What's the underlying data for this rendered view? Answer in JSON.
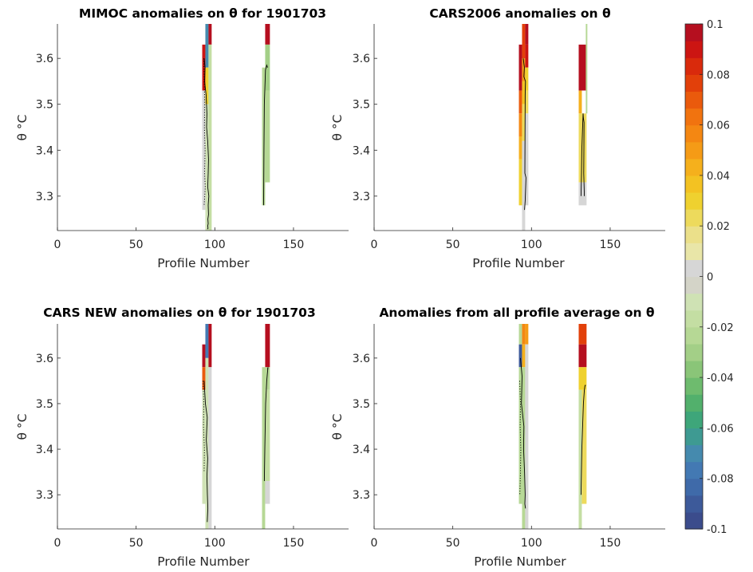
{
  "chart_data": {
    "type": "heatmap",
    "colorbar": {
      "min": -0.1,
      "max": 0.1,
      "ticks": [
        "0.1",
        "0.08",
        "0.06",
        "0.04",
        "0.02",
        "0",
        "-0.02",
        "-0.04",
        "-0.06",
        "-0.08",
        "-0.1"
      ],
      "colors": [
        "#3b4c8c",
        "#3d5a9a",
        "#3f6aa9",
        "#4379b3",
        "#458aae",
        "#3e9a92",
        "#3ea67a",
        "#52b06c",
        "#6ebb6e",
        "#8ac578",
        "#a3cf87",
        "#b6d895",
        "#c4dea3",
        "#cfe2b4",
        "#d4d4c8",
        "#d6d6d6",
        "#e9e6a8",
        "#ebe08a",
        "#edda5c",
        "#efd12f",
        "#f3c222",
        "#f5b01c",
        "#f59b16",
        "#f48712",
        "#f1730f",
        "#ea5a0c",
        "#e2400a",
        "#d92a0c",
        "#cc1512",
        "#b50f1f"
      ]
    },
    "panels": [
      {
        "title": "MIMOC anomalies on θ  for 1901703",
        "xlabel": "Profile Number",
        "ylabel": "θ °C",
        "xlim": [
          0,
          185
        ],
        "ylim": [
          3.225,
          3.675
        ],
        "xticks": [
          0,
          50,
          100,
          150
        ],
        "yticks": [
          3.3,
          3.4,
          3.5,
          3.6
        ],
        "cells": [
          {
            "x0": 92,
            "x1": 94,
            "y0": 3.53,
            "y1": 3.63,
            "v": 0.09
          },
          {
            "x0": 92,
            "x1": 94,
            "y0": 3.27,
            "y1": 3.53,
            "v": 0.0
          },
          {
            "x0": 94,
            "x1": 96,
            "y0": 3.58,
            "y1": 3.675,
            "v": -0.07
          },
          {
            "x0": 94,
            "x1": 96,
            "y0": 3.5,
            "y1": 3.58,
            "v": 0.03
          },
          {
            "x0": 94,
            "x1": 96,
            "y0": 3.225,
            "y1": 3.5,
            "v": -0.01
          },
          {
            "x0": 96,
            "x1": 98,
            "y0": 3.63,
            "y1": 3.675,
            "v": 0.1
          },
          {
            "x0": 96,
            "x1": 98,
            "y0": 3.225,
            "y1": 3.63,
            "v": -0.015
          },
          {
            "x0": 130,
            "x1": 132,
            "y0": 3.28,
            "y1": 3.58,
            "v": -0.02
          },
          {
            "x0": 132,
            "x1": 135,
            "y0": 3.63,
            "y1": 3.675,
            "v": 0.1
          },
          {
            "x0": 132,
            "x1": 135,
            "y0": 3.53,
            "y1": 3.63,
            "v": -0.03
          },
          {
            "x0": 132,
            "x1": 135,
            "y0": 3.33,
            "y1": 3.53,
            "v": -0.02
          }
        ],
        "lines": [
          {
            "style": "solid",
            "x": [
              93.2,
              93.8,
              93.5,
              94.5,
              95,
              94.8,
              95.5,
              96,
              95.8,
              95.5,
              96.2,
              95.8,
              96,
              95.6,
              95.8,
              95.5,
              95.7,
              95.3
            ],
            "y": [
              3.6,
              3.58,
              3.55,
              3.52,
              3.48,
              3.45,
              3.42,
              3.38,
              3.35,
              3.32,
              3.3,
              3.28,
              3.26,
              3.25,
              3.24,
              3.235,
              3.23,
              3.228
            ]
          },
          {
            "style": "dotted",
            "x": [
              93,
              93.3,
              93.6,
              93.4,
              93.8,
              93.5,
              93.9,
              93.6,
              93.2
            ],
            "y": [
              3.6,
              3.55,
              3.5,
              3.45,
              3.4,
              3.35,
              3.32,
              3.3,
              3.28
            ]
          },
          {
            "style": "solid",
            "x": [
              131,
              131.2,
              131.5,
              132.2,
              133,
              133.5,
              133
            ],
            "y": [
              3.28,
              3.4,
              3.5,
              3.575,
              3.585,
              3.58,
              3.585
            ]
          }
        ]
      },
      {
        "title": "CARS2006 anomalies on θ",
        "xlabel": "Profile Number",
        "ylabel": "θ °C",
        "xlim": [
          0,
          185
        ],
        "ylim": [
          3.225,
          3.675
        ],
        "xticks": [
          0,
          50,
          100,
          150
        ],
        "yticks": [
          3.3,
          3.4,
          3.5,
          3.6
        ],
        "cells": [
          {
            "x0": 92,
            "x1": 94,
            "y0": 3.53,
            "y1": 3.63,
            "v": 0.1
          },
          {
            "x0": 92,
            "x1": 94,
            "y0": 3.48,
            "y1": 3.53,
            "v": 0.07
          },
          {
            "x0": 92,
            "x1": 94,
            "y0": 3.43,
            "y1": 3.48,
            "v": 0.06
          },
          {
            "x0": 92,
            "x1": 94,
            "y0": 3.38,
            "y1": 3.43,
            "v": 0.04
          },
          {
            "x0": 92,
            "x1": 94,
            "y0": 3.28,
            "y1": 3.38,
            "v": 0.03
          },
          {
            "x0": 94,
            "x1": 96,
            "y0": 3.6,
            "y1": 3.675,
            "v": 0.08
          },
          {
            "x0": 94,
            "x1": 96,
            "y0": 3.55,
            "y1": 3.6,
            "v": 0.05
          },
          {
            "x0": 94,
            "x1": 96,
            "y0": 3.5,
            "y1": 3.55,
            "v": 0.035
          },
          {
            "x0": 94,
            "x1": 96,
            "y0": 3.42,
            "y1": 3.5,
            "v": 0.025
          },
          {
            "x0": 94,
            "x1": 96,
            "y0": 3.225,
            "y1": 3.42,
            "v": 0.0
          },
          {
            "x0": 96,
            "x1": 98,
            "y0": 3.63,
            "y1": 3.675,
            "v": 0.1
          },
          {
            "x0": 96,
            "x1": 98,
            "y0": 3.58,
            "y1": 3.63,
            "v": 0.09
          },
          {
            "x0": 96,
            "x1": 98,
            "y0": 3.53,
            "y1": 3.58,
            "v": 0.03
          },
          {
            "x0": 96,
            "x1": 98,
            "y0": 3.48,
            "y1": 3.53,
            "v": 0.025
          },
          {
            "x0": 96,
            "x1": 98,
            "y0": 3.28,
            "y1": 3.48,
            "v": 0.0
          },
          {
            "x0": 130,
            "x1": 135,
            "y0": 3.53,
            "y1": 3.63,
            "v": 0.1
          },
          {
            "x0": 130,
            "x1": 132,
            "y0": 3.48,
            "y1": 3.53,
            "v": 0.04
          },
          {
            "x0": 130,
            "x1": 135,
            "y0": 3.33,
            "y1": 3.48,
            "v": 0.025
          },
          {
            "x0": 130,
            "x1": 135,
            "y0": 3.28,
            "y1": 3.33,
            "v": 0.0
          },
          {
            "x0": 134.5,
            "x1": 135.5,
            "y0": 3.48,
            "y1": 3.675,
            "v": -0.02
          }
        ],
        "lines": [
          {
            "style": "solid",
            "x": [
              94.8,
              95.5,
              95.2,
              96.2,
              96,
              95.8,
              96.5,
              96.2,
              96,
              95.6
            ],
            "y": [
              3.6,
              3.58,
              3.56,
              3.55,
              3.52,
              3.35,
              3.34,
              3.31,
              3.29,
              3.27
            ]
          },
          {
            "style": "solid",
            "x": [
              131.5,
              131.8,
              132,
              132.5,
              132.8,
              133,
              133.4,
              133.2,
              133.6
            ],
            "y": [
              3.3,
              3.35,
              3.4,
              3.45,
              3.48,
              3.47,
              3.46,
              3.35,
              3.3
            ]
          }
        ]
      },
      {
        "title": "CARS NEW anomalies on θ for 1901703",
        "xlabel": "Profile Number",
        "ylabel": "θ °C",
        "xlim": [
          0,
          185
        ],
        "ylim": [
          3.225,
          3.675
        ],
        "xticks": [
          0,
          50,
          100,
          150
        ],
        "yticks": [
          3.3,
          3.4,
          3.5,
          3.6
        ],
        "cells": [
          {
            "x0": 92,
            "x1": 94,
            "y0": 3.58,
            "y1": 3.63,
            "v": 0.1
          },
          {
            "x0": 92,
            "x1": 94,
            "y0": 3.53,
            "y1": 3.58,
            "v": 0.07
          },
          {
            "x0": 92,
            "x1": 94,
            "y0": 3.28,
            "y1": 3.53,
            "v": -0.01
          },
          {
            "x0": 94,
            "x1": 96,
            "y0": 3.6,
            "y1": 3.675,
            "v": -0.08
          },
          {
            "x0": 94,
            "x1": 96,
            "y0": 3.225,
            "y1": 3.6,
            "v": -0.012
          },
          {
            "x0": 96,
            "x1": 98,
            "y0": 3.58,
            "y1": 3.675,
            "v": 0.1
          },
          {
            "x0": 96,
            "x1": 98,
            "y0": 3.225,
            "y1": 3.58,
            "v": 0.0
          },
          {
            "x0": 130,
            "x1": 132,
            "y0": 3.225,
            "y1": 3.58,
            "v": -0.02
          },
          {
            "x0": 132,
            "x1": 135,
            "y0": 3.58,
            "y1": 3.675,
            "v": 0.1
          },
          {
            "x0": 132,
            "x1": 135,
            "y0": 3.53,
            "y1": 3.58,
            "v": -0.025
          },
          {
            "x0": 132,
            "x1": 135,
            "y0": 3.33,
            "y1": 3.53,
            "v": -0.018
          },
          {
            "x0": 132,
            "x1": 135,
            "y0": 3.28,
            "y1": 3.33,
            "v": 0.0
          }
        ],
        "lines": [
          {
            "style": "solid",
            "x": [
              93.2,
              94,
              95.2,
              94.6,
              95.5,
              95,
              95.3,
              95.6,
              95.2
            ],
            "y": [
              3.55,
              3.5,
              3.47,
              3.42,
              3.38,
              3.34,
              3.3,
              3.27,
              3.24
            ]
          },
          {
            "style": "dotted",
            "x": [
              92.5,
              93,
              92.8,
              93.4,
              93.2
            ],
            "y": [
              3.55,
              3.5,
              3.45,
              3.4,
              3.35
            ]
          },
          {
            "style": "solid",
            "x": [
              131.5,
              131.8,
              132.3,
              133,
              133.5,
              133.8,
              133.5
            ],
            "y": [
              3.33,
              3.4,
              3.5,
              3.55,
              3.57,
              3.58,
              3.575
            ]
          }
        ]
      },
      {
        "title": "Anomalies from all profile average on θ",
        "xlabel": "Profile Number",
        "ylabel": "θ °C",
        "xlim": [
          0,
          185
        ],
        "ylim": [
          3.225,
          3.675
        ],
        "xticks": [
          0,
          50,
          100,
          150
        ],
        "yticks": [
          3.3,
          3.4,
          3.5,
          3.6
        ],
        "cells": [
          {
            "x0": 92,
            "x1": 94,
            "y0": 3.63,
            "y1": 3.675,
            "v": -0.02
          },
          {
            "x0": 92,
            "x1": 94,
            "y0": 3.58,
            "y1": 3.63,
            "v": -0.09
          },
          {
            "x0": 92,
            "x1": 94,
            "y0": 3.28,
            "y1": 3.58,
            "v": -0.025
          },
          {
            "x0": 94,
            "x1": 96,
            "y0": 3.63,
            "y1": 3.675,
            "v": 0.06
          },
          {
            "x0": 94,
            "x1": 96,
            "y0": 3.58,
            "y1": 3.63,
            "v": 0.04
          },
          {
            "x0": 94,
            "x1": 96,
            "y0": 3.225,
            "y1": 3.58,
            "v": -0.02
          },
          {
            "x0": 96,
            "x1": 98,
            "y0": 3.63,
            "y1": 3.675,
            "v": 0.05
          },
          {
            "x0": 96,
            "x1": 98,
            "y0": 3.225,
            "y1": 3.63,
            "v": 0.0
          },
          {
            "x0": 130,
            "x1": 135,
            "y0": 3.63,
            "y1": 3.675,
            "v": 0.08
          },
          {
            "x0": 130,
            "x1": 135,
            "y0": 3.58,
            "y1": 3.63,
            "v": 0.1
          },
          {
            "x0": 130,
            "x1": 135,
            "y0": 3.53,
            "y1": 3.58,
            "v": 0.03
          },
          {
            "x0": 130,
            "x1": 132,
            "y0": 3.225,
            "y1": 3.53,
            "v": -0.015
          },
          {
            "x0": 132,
            "x1": 135,
            "y0": 3.28,
            "y1": 3.53,
            "v": 0.02
          }
        ],
        "lines": [
          {
            "style": "solid",
            "x": [
              93,
              94,
              93.6,
              95.2,
              95,
              95.6,
              96,
              95.8,
              96.2
            ],
            "y": [
              3.6,
              3.56,
              3.5,
              3.45,
              3.4,
              3.35,
              3.3,
              3.28,
              3.27
            ]
          },
          {
            "style": "dotted",
            "x": [
              92.5,
              93,
              92.8,
              93.2,
              93,
              92.6
            ],
            "y": [
              3.55,
              3.5,
              3.45,
              3.4,
              3.35,
              3.3
            ]
          },
          {
            "style": "solid",
            "x": [
              131.5,
              132,
              132.5,
              133,
              133.6,
              134,
              134.5
            ],
            "y": [
              3.3,
              3.4,
              3.45,
              3.5,
              3.53,
              3.54,
              3.54
            ]
          }
        ]
      }
    ]
  }
}
